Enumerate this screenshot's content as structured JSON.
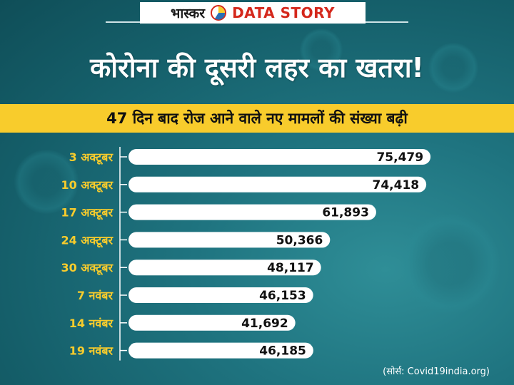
{
  "header": {
    "brand_name": "भास्कर",
    "brand_tag": "DATA STORY",
    "logo_icon": "pie-chart-icon"
  },
  "headline": "कोरोना की दूसरी लहर का खतरा!",
  "subtitle": "47 दिन बाद रोज आने वाले नए मामलों की संख्या बढ़ी",
  "source": "(सोर्स: Covid19india.org)",
  "colors": {
    "accent_yellow": "#f8cc2c",
    "bar_white": "#ffffff",
    "brand_red": "#d4281c",
    "background_teal": "#1f7480"
  },
  "chart_data": {
    "type": "bar",
    "orientation": "horizontal",
    "categories": [
      "3 अक्टूबर",
      "10 अक्टूबर",
      "17 अक्टूबर",
      "24 अक्टूबर",
      "30 अक्टूबर",
      "7 नवंबर",
      "14 नवंबर",
      "19 नवंबर"
    ],
    "values": [
      75479,
      74418,
      61893,
      50366,
      48117,
      46153,
      41692,
      46185
    ],
    "value_labels": [
      "75,479",
      "74,418",
      "61,893",
      "50,366",
      "48,117",
      "46,153",
      "41,692",
      "46,185"
    ],
    "title": "47 दिन बाद रोज आने वाले नए मामलों की संख्या बढ़ी",
    "xlabel": "",
    "ylabel": "",
    "xlim": [
      0,
      76000
    ],
    "grid": false
  }
}
